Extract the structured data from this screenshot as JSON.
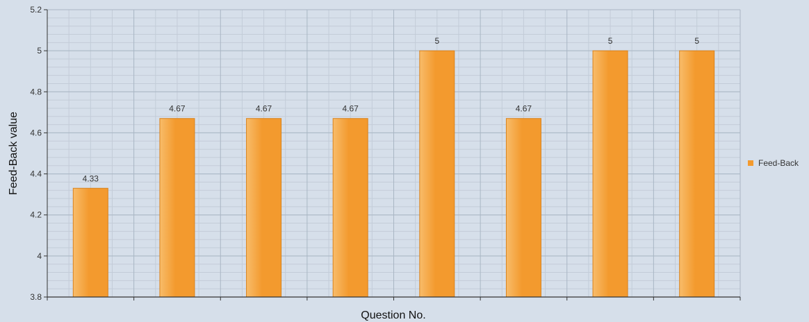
{
  "chart_data": {
    "type": "bar",
    "categories": [
      "",
      "",
      "",
      "",
      "",
      "",
      "",
      ""
    ],
    "series": [
      {
        "name": "Feed-Back",
        "values": [
          4.33,
          4.67,
          4.67,
          4.67,
          5,
          4.67,
          5,
          5
        ],
        "data_labels": [
          "4.33",
          "4.67",
          "4.67",
          "4.67",
          "5",
          "4.67",
          "5",
          "5"
        ]
      }
    ],
    "title": "",
    "xlabel": "Question No.",
    "ylabel": "Feed-Back value",
    "ylim": [
      3.8,
      5.2
    ],
    "yticks": [
      "3.8",
      "4",
      "4.2",
      "4.4",
      "4.6",
      "4.8",
      "5",
      "5.2"
    ],
    "grid": true,
    "legend_position": "right",
    "colors": {
      "bar": "#f39a2e",
      "bar_light": "#f8bc6a",
      "plot_background": "#d6dfea",
      "grid_major": "#a9b6c4",
      "grid_minor": "#c3ccd8",
      "axis": "#333333"
    }
  }
}
